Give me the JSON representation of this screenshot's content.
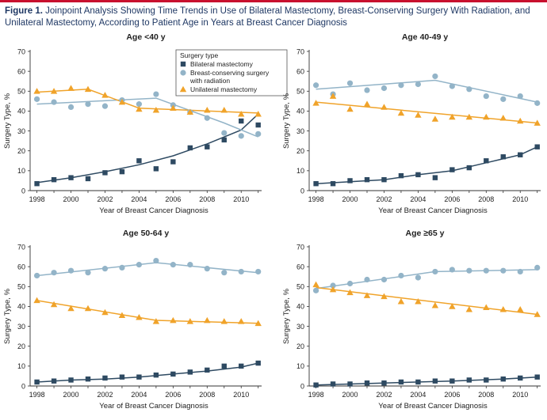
{
  "figure": {
    "title_label": "Figure 1.",
    "title_text": "Joinpoint Analysis Showing Time Trends in Use of Bilateral Mastectomy, Breast-Conserving Surgery With Radiation, and Unilateral Mastectomy, According to Patient Age in Years at Breast Cancer Diagnosis"
  },
  "colors": {
    "bilateral": "#2e4a62",
    "bcs": "#93b4c8",
    "unilateral": "#f0a32a",
    "title": "#1f3864",
    "rule": "#c8102e"
  },
  "legend": {
    "title": "Surgery type",
    "items": [
      {
        "key": "bilateral",
        "lines": [
          "Bilateral mastectomy"
        ],
        "marker": "square"
      },
      {
        "key": "bcs",
        "lines": [
          "Breast-conserving surgery",
          "with radiation"
        ],
        "marker": "circle"
      },
      {
        "key": "unilateral",
        "lines": [
          "Unilateral mastectomy"
        ],
        "marker": "triangle"
      }
    ]
  },
  "chart_data": [
    {
      "type": "scatter",
      "title": "Age <40 y",
      "xlabel": "Year of Breast Cancer Diagnosis",
      "ylabel": "Surgery Type, %",
      "xlim": [
        1997.6,
        2011.2
      ],
      "ylim": [
        0,
        70
      ],
      "xticks": [
        1998,
        2000,
        2002,
        2004,
        2006,
        2008,
        2010
      ],
      "yticks": [
        0,
        10,
        20,
        30,
        40,
        50,
        60,
        70
      ],
      "x": [
        1998,
        1999,
        2000,
        2001,
        2002,
        2003,
        2004,
        2005,
        2006,
        2007,
        2008,
        2009,
        2010,
        2011
      ],
      "show_legend": true,
      "series": [
        {
          "name": "Bilateral mastectomy",
          "key": "bilateral",
          "marker": "square",
          "values": [
            3.5,
            5.5,
            6.5,
            6,
            9,
            9.5,
            15,
            11,
            14.5,
            21.5,
            22,
            25.5,
            35,
            33
          ],
          "trend": [
            [
              1998,
              4
            ],
            [
              2000,
              6.5
            ],
            [
              2002,
              9.5
            ],
            [
              2004,
              13
            ],
            [
              2006,
              17.5
            ],
            [
              2008,
              23.5
            ],
            [
              2010,
              30.5
            ],
            [
              2011,
              38.5
            ]
          ]
        },
        {
          "name": "Breast-conserving surgery with radiation",
          "key": "bcs",
          "marker": "circle",
          "values": [
            46,
            44.5,
            42,
            43.5,
            42.5,
            45.5,
            43.5,
            48.5,
            43,
            39.5,
            36.5,
            29,
            27.5,
            28.5
          ],
          "trend": [
            [
              1998,
              43.5
            ],
            [
              2005,
              46.5
            ],
            [
              2009,
              34
            ],
            [
              2011,
              27
            ]
          ]
        },
        {
          "name": "Unilateral mastectomy",
          "key": "unilateral",
          "marker": "triangle",
          "values": [
            50,
            50,
            51.5,
            51,
            48,
            44.5,
            41,
            40.5,
            41.5,
            39.5,
            40.5,
            40.5,
            38.5,
            38.5
          ],
          "trend": [
            [
              1998,
              49.5
            ],
            [
              2001,
              51
            ],
            [
              2004,
              41.5
            ],
            [
              2011,
              39
            ]
          ]
        }
      ]
    },
    {
      "type": "scatter",
      "title": "Age 40-49 y",
      "xlabel": "Year of Breast Cancer Diagnosis",
      "ylabel": "Surgery Type, %",
      "xlim": [
        1997.6,
        2011.2
      ],
      "ylim": [
        0,
        70
      ],
      "xticks": [
        1998,
        2000,
        2002,
        2004,
        2006,
        2008,
        2010
      ],
      "yticks": [
        0,
        10,
        20,
        30,
        40,
        50,
        60,
        70
      ],
      "x": [
        1998,
        1999,
        2000,
        2001,
        2002,
        2003,
        2004,
        2005,
        2006,
        2007,
        2008,
        2009,
        2010,
        2011
      ],
      "show_legend": false,
      "series": [
        {
          "name": "Bilateral mastectomy",
          "key": "bilateral",
          "marker": "square",
          "values": [
            3.5,
            3.5,
            5,
            5.5,
            5.5,
            7.5,
            8,
            6.5,
            10.5,
            11.5,
            15,
            17,
            18,
            22
          ],
          "trend": [
            [
              1998,
              3.5
            ],
            [
              2000,
              4.5
            ],
            [
              2002,
              5.5
            ],
            [
              2004,
              8
            ],
            [
              2006,
              10
            ],
            [
              2008,
              14
            ],
            [
              2010,
              18
            ],
            [
              2011,
              22
            ]
          ]
        },
        {
          "name": "Breast-conserving surgery with radiation",
          "key": "bcs",
          "marker": "circle",
          "values": [
            53,
            48.5,
            54,
            50.5,
            51.5,
            53,
            53.5,
            57.5,
            52.5,
            51,
            47.5,
            46,
            47.5,
            44
          ],
          "trend": [
            [
              1998,
              51
            ],
            [
              2005,
              55.5
            ],
            [
              2011,
              44.5
            ]
          ]
        },
        {
          "name": "Unilateral mastectomy",
          "key": "unilateral",
          "marker": "triangle",
          "values": [
            44,
            47.5,
            41,
            43.5,
            42,
            39,
            38,
            36,
            37,
            37,
            37,
            36.5,
            35,
            34
          ],
          "trend": [
            [
              1998,
              44.5
            ],
            [
              2011,
              34
            ]
          ]
        }
      ]
    },
    {
      "type": "scatter",
      "title": "Age 50-64 y",
      "xlabel": "Year of Breast Cancer Diagnosis",
      "ylabel": "Surgery Type, %",
      "xlim": [
        1997.6,
        2011.2
      ],
      "ylim": [
        0,
        70
      ],
      "xticks": [
        1998,
        2000,
        2002,
        2004,
        2006,
        2008,
        2010
      ],
      "yticks": [
        0,
        10,
        20,
        30,
        40,
        50,
        60,
        70
      ],
      "x": [
        1998,
        1999,
        2000,
        2001,
        2002,
        2003,
        2004,
        2005,
        2006,
        2007,
        2008,
        2009,
        2010,
        2011
      ],
      "show_legend": false,
      "series": [
        {
          "name": "Bilateral mastectomy",
          "key": "bilateral",
          "marker": "square",
          "values": [
            2,
            2.5,
            3,
            3.5,
            4,
            4.5,
            4.5,
            5.5,
            6,
            7,
            8,
            10,
            10,
            11.5
          ],
          "trend": [
            [
              1998,
              2
            ],
            [
              2000,
              3
            ],
            [
              2002,
              3.5
            ],
            [
              2004,
              4.5
            ],
            [
              2006,
              6
            ],
            [
              2008,
              7.5
            ],
            [
              2010,
              9.5
            ],
            [
              2011,
              11.5
            ]
          ]
        },
        {
          "name": "Breast-conserving surgery with radiation",
          "key": "bcs",
          "marker": "circle",
          "values": [
            55.5,
            57,
            58,
            57,
            59,
            59.5,
            61,
            63,
            61,
            61,
            59,
            57,
            57.5,
            57.5
          ],
          "trend": [
            [
              1998,
              55.5
            ],
            [
              2005,
              62
            ],
            [
              2011,
              57
            ]
          ]
        },
        {
          "name": "Unilateral mastectomy",
          "key": "unilateral",
          "marker": "triangle",
          "values": [
            43,
            41,
            39,
            39,
            37,
            35.5,
            34.5,
            32.5,
            33,
            32.5,
            33,
            32.5,
            32.5,
            31.5
          ],
          "trend": [
            [
              1998,
              43
            ],
            [
              2005,
              33
            ],
            [
              2011,
              31.5
            ]
          ]
        }
      ]
    },
    {
      "type": "scatter",
      "title": "Age ≥65 y",
      "xlabel": "Year of Breast Cancer Diagnosis",
      "ylabel": "Surgery Type, %",
      "xlim": [
        1997.6,
        2011.2
      ],
      "ylim": [
        0,
        70
      ],
      "xticks": [
        1998,
        2000,
        2002,
        2004,
        2006,
        2008,
        2010
      ],
      "yticks": [
        0,
        10,
        20,
        30,
        40,
        50,
        60,
        70
      ],
      "x": [
        1998,
        1999,
        2000,
        2001,
        2002,
        2003,
        2004,
        2005,
        2006,
        2007,
        2008,
        2009,
        2010,
        2011
      ],
      "show_legend": false,
      "series": [
        {
          "name": "Bilateral mastectomy",
          "key": "bilateral",
          "marker": "square",
          "values": [
            0.5,
            1,
            1,
            1.5,
            1.5,
            2,
            2,
            2.5,
            2.5,
            3,
            3,
            3.5,
            4,
            4.5
          ],
          "trend": [
            [
              1998,
              0.5
            ],
            [
              2002,
              1.5
            ],
            [
              2006,
              2.5
            ],
            [
              2009,
              3.5
            ],
            [
              2011,
              4.5
            ]
          ]
        },
        {
          "name": "Breast-conserving surgery with radiation",
          "key": "bcs",
          "marker": "circle",
          "values": [
            48,
            50.5,
            51.5,
            53.5,
            53.5,
            55.5,
            54.5,
            57.5,
            58.5,
            58,
            58,
            58,
            57.5,
            59.5
          ],
          "trend": [
            [
              1998,
              49
            ],
            [
              2005,
              57.5
            ],
            [
              2011,
              58.5
            ]
          ]
        },
        {
          "name": "Unilateral mastectomy",
          "key": "unilateral",
          "marker": "triangle",
          "values": [
            51,
            48.5,
            47,
            45.5,
            45,
            42.5,
            42.5,
            40.5,
            40,
            38.5,
            39.5,
            38.5,
            38.5,
            36
          ],
          "trend": [
            [
              1998,
              49.5
            ],
            [
              2011,
              36
            ]
          ]
        }
      ]
    }
  ]
}
